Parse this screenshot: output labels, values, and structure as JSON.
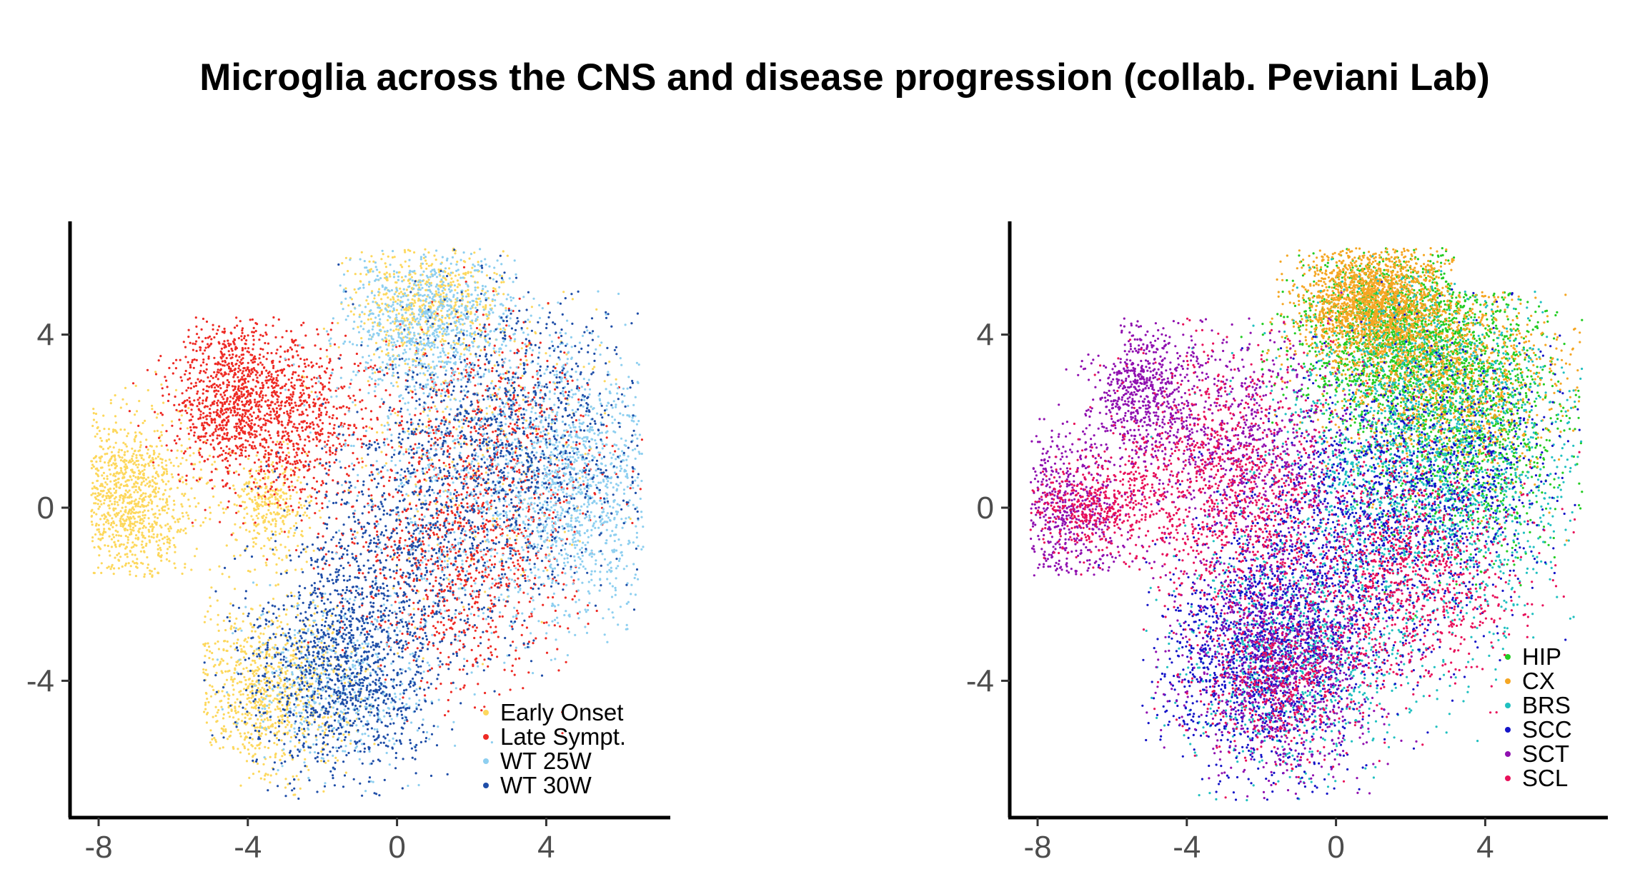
{
  "title": "Microglia across the CNS and disease progression (collab. Peviani Lab)",
  "chart_data": [
    {
      "type": "scatter",
      "title": "",
      "xlabel": "",
      "ylabel": "",
      "xlim": [
        -8.6,
        7.3
      ],
      "ylim": [
        -7.2,
        6.5
      ],
      "xticks": [
        -8,
        -4,
        0,
        4
      ],
      "yticks": [
        4,
        0,
        -4
      ],
      "xtick_labels": [
        "-8",
        "-4",
        "0",
        "4"
      ],
      "ytick_labels": [
        "4",
        "0",
        "-4"
      ],
      "grid": false,
      "legend_position": "bottom-right",
      "series": [
        {
          "name": "Early Onset",
          "color": "#FDD85D",
          "clusters": [
            {
              "cx": -7.2,
              "cy": 0.2,
              "sx": 0.9,
              "sy": 1.0,
              "w": 0.34
            },
            {
              "cx": -3.4,
              "cy": 0.0,
              "sx": 0.5,
              "sy": 0.6,
              "w": 0.1
            },
            {
              "cx": -3.5,
              "cy": -4.2,
              "sx": 1.2,
              "sy": 1.0,
              "w": 0.3
            },
            {
              "cx": 0.8,
              "cy": 4.8,
              "sx": 1.0,
              "sy": 0.7,
              "w": 0.16
            },
            {
              "cx": 2.0,
              "cy": 1.5,
              "sx": 2.0,
              "sy": 2.0,
              "w": 0.1
            }
          ]
        },
        {
          "name": "Late Sympt.",
          "color": "#EE2A24",
          "clusters": [
            {
              "cx": -4.5,
              "cy": 2.6,
              "sx": 0.8,
              "sy": 0.9,
              "w": 0.3
            },
            {
              "cx": -2.8,
              "cy": 2.0,
              "sx": 1.0,
              "sy": 1.0,
              "w": 0.24
            },
            {
              "cx": 1.5,
              "cy": -1.5,
              "sx": 1.6,
              "sy": 1.3,
              "w": 0.24
            },
            {
              "cx": 2.5,
              "cy": 1.5,
              "sx": 1.5,
              "sy": 1.4,
              "w": 0.22
            }
          ]
        },
        {
          "name": "WT 25W",
          "color": "#8ECFF0",
          "clusters": [
            {
              "cx": 1.0,
              "cy": 4.3,
              "sx": 1.3,
              "sy": 0.9,
              "w": 0.3
            },
            {
              "cx": 5.0,
              "cy": 0.5,
              "sx": 0.9,
              "sy": 1.5,
              "w": 0.3
            },
            {
              "cx": 2.5,
              "cy": 0.5,
              "sx": 1.8,
              "sy": 1.8,
              "w": 0.25
            },
            {
              "cx": -1.5,
              "cy": -4.0,
              "sx": 1.2,
              "sy": 1.0,
              "w": 0.15
            }
          ]
        },
        {
          "name": "WT 30W",
          "color": "#1F4EA8",
          "clusters": [
            {
              "cx": -1.5,
              "cy": -3.8,
              "sx": 1.3,
              "sy": 1.2,
              "w": 0.4
            },
            {
              "cx": 2.8,
              "cy": 1.5,
              "sx": 1.8,
              "sy": 1.8,
              "w": 0.4
            },
            {
              "cx": 0.0,
              "cy": -1.0,
              "sx": 1.5,
              "sy": 1.3,
              "w": 0.2
            }
          ]
        }
      ]
    },
    {
      "type": "scatter",
      "title": "",
      "xlabel": "",
      "ylabel": "",
      "xlim": [
        -8.6,
        7.3
      ],
      "ylim": [
        -7.2,
        6.5
      ],
      "xticks": [
        -8,
        -4,
        0,
        4
      ],
      "yticks": [
        4,
        0,
        -4
      ],
      "xtick_labels": [
        "-8",
        "-4",
        "0",
        "4"
      ],
      "ytick_labels": [
        "4",
        "0",
        "-4"
      ],
      "grid": false,
      "legend_position": "bottom-right",
      "series": [
        {
          "name": "HIP",
          "color": "#22CC22",
          "clusters": [
            {
              "cx": 1.8,
              "cy": 4.0,
              "sx": 1.4,
              "sy": 1.0,
              "w": 0.6
            },
            {
              "cx": 3.5,
              "cy": 1.8,
              "sx": 1.4,
              "sy": 1.4,
              "w": 0.4
            }
          ]
        },
        {
          "name": "CX",
          "color": "#F5A623",
          "clusters": [
            {
              "cx": 1.0,
              "cy": 4.8,
              "sx": 1.0,
              "sy": 0.7,
              "w": 0.6
            },
            {
              "cx": 3.0,
              "cy": 3.0,
              "sx": 1.5,
              "sy": 1.2,
              "w": 0.4
            }
          ]
        },
        {
          "name": "BRS",
          "color": "#20C0C0",
          "clusters": [
            {
              "cx": 2.5,
              "cy": 1.0,
              "sx": 2.0,
              "sy": 2.0,
              "w": 0.7
            },
            {
              "cx": -1.0,
              "cy": -3.5,
              "sx": 1.5,
              "sy": 1.3,
              "w": 0.3
            }
          ]
        },
        {
          "name": "SCC",
          "color": "#1515C8",
          "clusters": [
            {
              "cx": -2.0,
              "cy": -3.5,
              "sx": 1.4,
              "sy": 1.3,
              "w": 0.45
            },
            {
              "cx": 0.5,
              "cy": -0.5,
              "sx": 1.8,
              "sy": 1.5,
              "w": 0.35
            },
            {
              "cx": 3.0,
              "cy": 1.0,
              "sx": 1.7,
              "sy": 1.6,
              "w": 0.2
            }
          ]
        },
        {
          "name": "SCT",
          "color": "#9010B0",
          "clusters": [
            {
              "cx": -5.2,
              "cy": 2.8,
              "sx": 0.7,
              "sy": 0.8,
              "w": 0.2
            },
            {
              "cx": -7.2,
              "cy": 0.0,
              "sx": 0.8,
              "sy": 1.0,
              "w": 0.2
            },
            {
              "cx": -2.5,
              "cy": 1.5,
              "sx": 1.4,
              "sy": 1.3,
              "w": 0.25
            },
            {
              "cx": -1.5,
              "cy": -3.5,
              "sx": 1.4,
              "sy": 1.3,
              "w": 0.35
            }
          ]
        },
        {
          "name": "SCL",
          "color": "#E8105A",
          "clusters": [
            {
              "cx": -3.0,
              "cy": 0.5,
              "sx": 1.5,
              "sy": 1.5,
              "w": 0.35
            },
            {
              "cx": 2.0,
              "cy": -1.5,
              "sx": 1.6,
              "sy": 1.3,
              "w": 0.35
            },
            {
              "cx": -6.5,
              "cy": 0.0,
              "sx": 0.9,
              "sy": 0.5,
              "w": 0.15
            },
            {
              "cx": -1.5,
              "cy": -4.0,
              "sx": 1.2,
              "sy": 1.0,
              "w": 0.15
            }
          ]
        }
      ]
    }
  ]
}
